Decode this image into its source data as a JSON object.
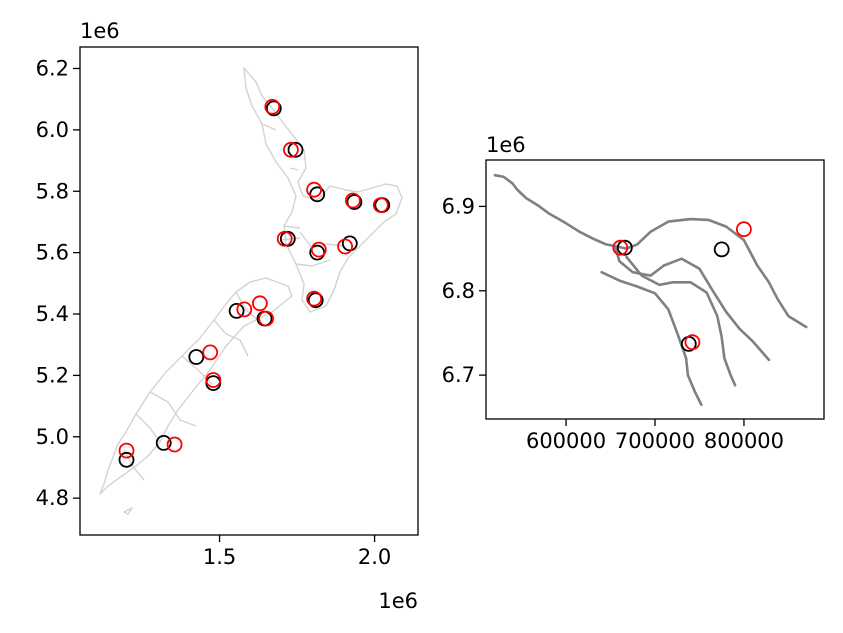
{
  "chart_data": [
    {
      "type": "scatter",
      "title": "",
      "xlabel": "",
      "ylabel": "",
      "x_offset_label": "1e6",
      "y_offset_label": "1e6",
      "xlim": [
        1.05,
        2.14
      ],
      "ylim": [
        4.68,
        6.27
      ],
      "xticks": [
        1.5,
        2.0
      ],
      "xtick_labels": [
        "1.5",
        "2.0"
      ],
      "yticks": [
        4.8,
        5.0,
        5.2,
        5.4,
        5.6,
        5.8,
        6.0,
        6.2
      ],
      "ytick_labels": [
        "4.8",
        "5.0",
        "5.2",
        "5.4",
        "5.6",
        "5.8",
        "6.0",
        "6.2"
      ],
      "grid": false,
      "background_outline_color": "#d3d3d3",
      "series": [
        {
          "color": "#000000",
          "marker": "open-circle",
          "points": [
            [
              1.675,
              6.07
            ],
            [
              1.745,
              5.935
            ],
            [
              1.815,
              5.79
            ],
            [
              1.935,
              5.765
            ],
            [
              2.025,
              5.755
            ],
            [
              1.72,
              5.645
            ],
            [
              1.815,
              5.6
            ],
            [
              1.92,
              5.63
            ],
            [
              1.81,
              5.445
            ],
            [
              1.555,
              5.41
            ],
            [
              1.645,
              5.385
            ],
            [
              1.425,
              5.26
            ],
            [
              1.48,
              5.175
            ],
            [
              1.32,
              4.98
            ],
            [
              1.2,
              4.925
            ]
          ]
        },
        {
          "color": "#ff0000",
          "marker": "open-circle",
          "points": [
            [
              1.67,
              6.075
            ],
            [
              1.73,
              5.935
            ],
            [
              1.805,
              5.805
            ],
            [
              1.93,
              5.77
            ],
            [
              2.02,
              5.755
            ],
            [
              1.71,
              5.645
            ],
            [
              1.82,
              5.61
            ],
            [
              1.905,
              5.62
            ],
            [
              1.805,
              5.45
            ],
            [
              1.58,
              5.415
            ],
            [
              1.63,
              5.435
            ],
            [
              1.65,
              5.385
            ],
            [
              1.47,
              5.275
            ],
            [
              1.48,
              5.185
            ],
            [
              1.355,
              4.975
            ],
            [
              1.2,
              4.955
            ]
          ]
        }
      ]
    },
    {
      "type": "scatter",
      "title": "",
      "xlabel": "",
      "ylabel": "",
      "y_offset_label": "1e6",
      "xlim": [
        510000,
        890000
      ],
      "ylim": [
        6.648,
        6.955
      ],
      "xticks": [
        600000,
        700000,
        800000
      ],
      "xtick_labels": [
        "600000",
        "700000",
        "800000"
      ],
      "yticks": [
        6.7,
        6.8,
        6.9
      ],
      "ytick_labels": [
        "6.7",
        "6.8",
        "6.9"
      ],
      "grid": false,
      "river_color": "#808080",
      "rivers": [
        [
          [
            520000,
            6.937
          ],
          [
            530000,
            6.935
          ],
          [
            540000,
            6.927
          ],
          [
            545000,
            6.92
          ],
          [
            555000,
            6.91
          ],
          [
            570000,
            6.9
          ],
          [
            580000,
            6.892
          ],
          [
            600000,
            6.88
          ],
          [
            615000,
            6.87
          ],
          [
            630000,
            6.862
          ],
          [
            645000,
            6.855
          ],
          [
            655000,
            6.853
          ],
          [
            668000,
            6.85
          ],
          [
            680000,
            6.855
          ],
          [
            695000,
            6.87
          ],
          [
            715000,
            6.882
          ],
          [
            740000,
            6.885
          ],
          [
            760000,
            6.884
          ],
          [
            780000,
            6.876
          ],
          [
            800000,
            6.86
          ],
          [
            815000,
            6.83
          ],
          [
            828000,
            6.81
          ],
          [
            838000,
            6.79
          ],
          [
            850000,
            6.77
          ],
          [
            870000,
            6.757
          ]
        ],
        [
          [
            655000,
            6.853
          ],
          [
            660000,
            6.835
          ],
          [
            675000,
            6.822
          ],
          [
            695000,
            6.818
          ],
          [
            710000,
            6.83
          ],
          [
            730000,
            6.838
          ],
          [
            750000,
            6.826
          ],
          [
            765000,
            6.8
          ],
          [
            780000,
            6.775
          ],
          [
            795000,
            6.755
          ],
          [
            810000,
            6.74
          ],
          [
            828000,
            6.718
          ]
        ],
        [
          [
            668000,
            6.84
          ],
          [
            685000,
            6.818
          ],
          [
            705000,
            6.807
          ],
          [
            720000,
            6.81
          ],
          [
            740000,
            6.81
          ],
          [
            758000,
            6.798
          ],
          [
            770000,
            6.77
          ],
          [
            775000,
            6.745
          ],
          [
            778000,
            6.72
          ],
          [
            785000,
            6.7
          ],
          [
            790000,
            6.688
          ]
        ],
        [
          [
            640000,
            6.822
          ],
          [
            660000,
            6.812
          ],
          [
            680000,
            6.805
          ],
          [
            700000,
            6.797
          ],
          [
            715000,
            6.778
          ],
          [
            725000,
            6.75
          ],
          [
            735000,
            6.72
          ],
          [
            737000,
            6.7
          ],
          [
            745000,
            6.68
          ],
          [
            752000,
            6.665
          ]
        ]
      ],
      "series": [
        {
          "color": "#000000",
          "marker": "open-circle",
          "points": [
            [
              666000,
              6.851
            ],
            [
              775000,
              6.849
            ],
            [
              738000,
              6.737
            ]
          ]
        },
        {
          "color": "#ff0000",
          "marker": "open-circle",
          "points": [
            [
              661000,
              6.851
            ],
            [
              800000,
              6.873
            ],
            [
              742000,
              6.739
            ]
          ]
        }
      ]
    }
  ]
}
